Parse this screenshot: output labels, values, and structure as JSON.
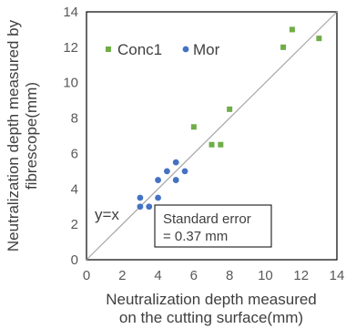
{
  "chart_data": {
    "type": "scatter",
    "xlabel": [
      "Neutralization depth measured",
      "on the cutting surface(mm)"
    ],
    "ylabel": [
      "Neutralization depth measured by",
      "fibrescope(mm)"
    ],
    "xlim": [
      0,
      14
    ],
    "ylim": [
      0,
      14
    ],
    "x_ticks": [
      "0",
      "2",
      "4",
      "6",
      "8",
      "10",
      "12",
      "14"
    ],
    "y_ticks": [
      "0",
      "2",
      "4",
      "6",
      "8",
      "10",
      "12",
      "14"
    ],
    "grid": false,
    "legend_position": "top-left",
    "series": [
      {
        "name": "Conc1",
        "color": "#70ad47",
        "marker": "square",
        "points": [
          [
            6.0,
            7.5
          ],
          [
            7.0,
            6.5
          ],
          [
            7.5,
            6.5
          ],
          [
            8.0,
            8.5
          ],
          [
            11.0,
            12.0
          ],
          [
            11.5,
            13.0
          ],
          [
            13.0,
            12.5
          ]
        ]
      },
      {
        "name": "Mor",
        "color": "#4472c4",
        "marker": "circle",
        "points": [
          [
            3.0,
            3.0
          ],
          [
            3.0,
            3.5
          ],
          [
            3.5,
            3.0
          ],
          [
            4.0,
            3.5
          ],
          [
            4.0,
            4.5
          ],
          [
            4.5,
            5.0
          ],
          [
            5.0,
            4.5
          ],
          [
            5.0,
            5.5
          ],
          [
            5.5,
            5.0
          ]
        ]
      }
    ],
    "reference_line": {
      "label": "y=x",
      "color": "#a6a6a6"
    },
    "annotation": [
      "Standard error",
      "= 0.37 mm"
    ]
  }
}
